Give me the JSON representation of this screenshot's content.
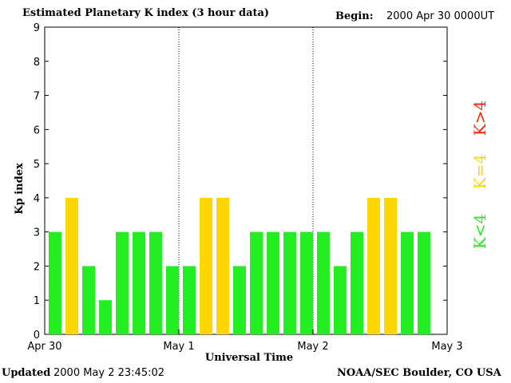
{
  "header": {
    "title": "Estimated Planetary K index (3 hour data)",
    "begin_label": "Begin:",
    "begin_value": "2000 Apr 30 0000UT"
  },
  "footer": {
    "updated_label": "Updated",
    "updated_value": "2000 May  2 23:45:02",
    "credit": "NOAA/SEC Boulder, CO USA"
  },
  "colors": {
    "low": "#22ee22",
    "moderate": "#ffd700",
    "high": "#ff2200"
  },
  "chart_data": {
    "type": "bar",
    "title": "Estimated Planetary K index (3 hour data)",
    "xlabel": "Universal Time",
    "ylabel": "Kp index",
    "ylim": [
      0,
      9
    ],
    "yticks": [
      0,
      1,
      2,
      3,
      4,
      5,
      6,
      7,
      8,
      9
    ],
    "xticks": [
      "Apr 30",
      "May 1",
      "May 2",
      "May 3"
    ],
    "day_dividers": true,
    "grid": false,
    "interval_hours": 3,
    "values": [
      3,
      4,
      2,
      1,
      3,
      3,
      3,
      2,
      2,
      4,
      4,
      2,
      3,
      3,
      3,
      3,
      3,
      2,
      3,
      4,
      4,
      3,
      3
    ],
    "legend": [
      {
        "label": "K<4",
        "color": "#22ee22"
      },
      {
        "label": "K=4",
        "color": "#ffd700"
      },
      {
        "label": "K>4",
        "color": "#ff2200"
      }
    ],
    "legend_position": "right"
  }
}
